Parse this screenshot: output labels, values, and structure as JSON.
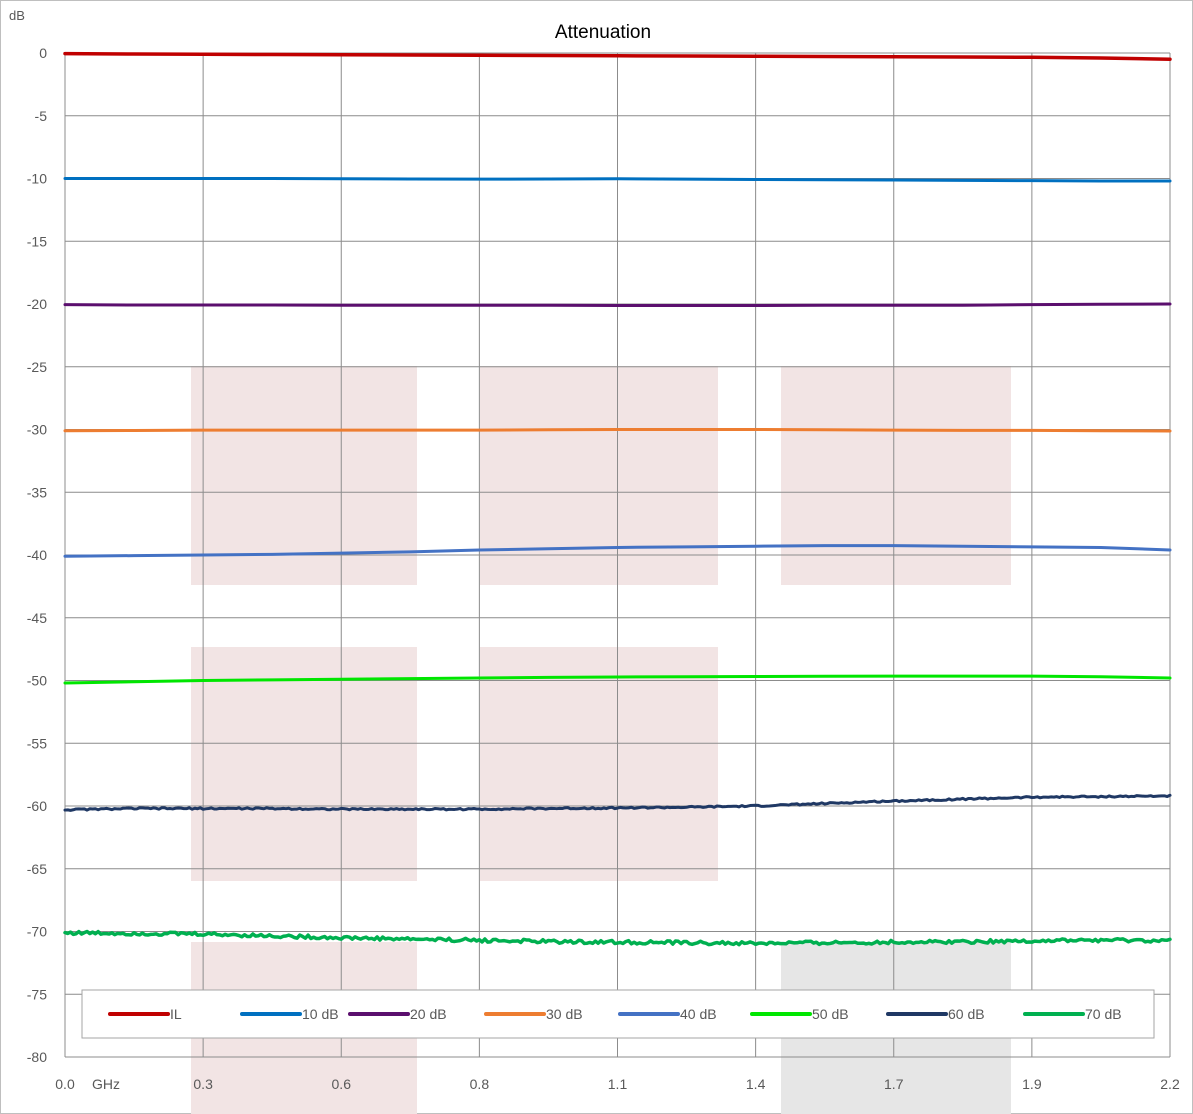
{
  "chart_data": {
    "type": "line",
    "title": "Attenuation",
    "ylabel": "dB",
    "xunit": "GHz",
    "ylim": [
      -80,
      0
    ],
    "yticks": [
      0,
      -5,
      -10,
      -15,
      -20,
      -25,
      -30,
      -35,
      -40,
      -45,
      -50,
      -55,
      -60,
      -65,
      -70,
      -75,
      -80
    ],
    "xlim": [
      0,
      8
    ],
    "xtick_labels": [
      "0.0",
      "0.3",
      "0.6",
      "0.8",
      "1.1",
      "1.4",
      "1.7",
      "1.9",
      "2.2"
    ],
    "grid": true,
    "legend_position": "bottom",
    "x": [
      0,
      0.5,
      1,
      1.5,
      2,
      2.5,
      3,
      3.5,
      4,
      4.5,
      5,
      5.5,
      6,
      6.5,
      7,
      7.5,
      8
    ],
    "series": [
      {
        "name": "IL",
        "color": "#C00000",
        "width": 3.5,
        "noise": 0,
        "values": [
          -0.05,
          -0.08,
          -0.1,
          -0.12,
          -0.14,
          -0.16,
          -0.18,
          -0.2,
          -0.22,
          -0.24,
          -0.26,
          -0.28,
          -0.3,
          -0.32,
          -0.34,
          -0.4,
          -0.5
        ]
      },
      {
        "name": "10 dB",
        "color": "#0070C0",
        "width": 3,
        "noise": 0,
        "values": [
          -10.0,
          -10.0,
          -10.0,
          -10.0,
          -10.02,
          -10.04,
          -10.05,
          -10.04,
          -10.02,
          -10.05,
          -10.08,
          -10.1,
          -10.12,
          -10.15,
          -10.17,
          -10.2,
          -10.2
        ]
      },
      {
        "name": "20 dB",
        "color": "#5B0F6E",
        "width": 3,
        "noise": 0,
        "values": [
          -20.05,
          -20.08,
          -20.08,
          -20.08,
          -20.1,
          -20.1,
          -20.1,
          -20.1,
          -20.12,
          -20.12,
          -20.12,
          -20.1,
          -20.1,
          -20.1,
          -20.05,
          -20.02,
          -20.0
        ]
      },
      {
        "name": "30 dB",
        "color": "#ED7D31",
        "width": 3,
        "noise": 0,
        "values": [
          -30.1,
          -30.08,
          -30.05,
          -30.05,
          -30.05,
          -30.05,
          -30.05,
          -30.02,
          -30.0,
          -30.0,
          -30.0,
          -30.02,
          -30.05,
          -30.07,
          -30.07,
          -30.1,
          -30.12
        ]
      },
      {
        "name": "40 dB",
        "color": "#4472C4",
        "width": 3,
        "noise": 0,
        "values": [
          -40.1,
          -40.05,
          -40.0,
          -39.95,
          -39.85,
          -39.75,
          -39.6,
          -39.5,
          -39.4,
          -39.35,
          -39.3,
          -39.25,
          -39.25,
          -39.3,
          -39.35,
          -39.4,
          -39.6
        ]
      },
      {
        "name": "50 dB",
        "color": "#00E600",
        "width": 3,
        "noise": 0,
        "values": [
          -50.2,
          -50.1,
          -50.0,
          -49.95,
          -49.9,
          -49.85,
          -49.8,
          -49.75,
          -49.72,
          -49.7,
          -49.68,
          -49.66,
          -49.65,
          -49.65,
          -49.65,
          -49.7,
          -49.8
        ]
      },
      {
        "name": "60 dB",
        "color": "#1F3864",
        "width": 3,
        "noise": 0.06,
        "values": [
          -60.3,
          -60.2,
          -60.2,
          -60.2,
          -60.25,
          -60.25,
          -60.25,
          -60.2,
          -60.15,
          -60.1,
          -60.0,
          -59.8,
          -59.6,
          -59.45,
          -59.3,
          -59.25,
          -59.2
        ]
      },
      {
        "name": "70 dB",
        "color": "#00B050",
        "width": 3.5,
        "noise": 0.14,
        "values": [
          -70.1,
          -70.15,
          -70.2,
          -70.35,
          -70.5,
          -70.6,
          -70.7,
          -70.8,
          -70.85,
          -70.9,
          -70.95,
          -70.9,
          -70.85,
          -70.8,
          -70.75,
          -70.7,
          -70.75
        ]
      }
    ]
  }
}
